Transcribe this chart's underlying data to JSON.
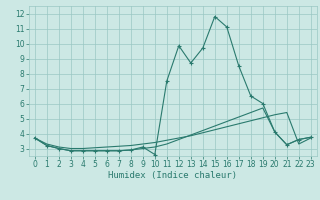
{
  "x_values": [
    0,
    1,
    2,
    3,
    4,
    5,
    6,
    7,
    8,
    9,
    10,
    11,
    12,
    13,
    14,
    15,
    16,
    17,
    18,
    19,
    20,
    21,
    22,
    23
  ],
  "line_main_y": [
    3.7,
    3.2,
    3.0,
    2.85,
    2.85,
    2.85,
    2.85,
    2.85,
    2.9,
    3.1,
    2.6,
    7.5,
    9.85,
    8.7,
    9.7,
    11.8,
    11.1,
    8.5,
    6.5,
    6.0,
    4.1,
    3.25,
    3.6,
    3.75
  ],
  "line_smooth1_y": [
    3.7,
    3.3,
    3.1,
    3.0,
    3.0,
    3.05,
    3.1,
    3.15,
    3.2,
    3.3,
    3.4,
    3.55,
    3.7,
    3.85,
    4.05,
    4.25,
    4.45,
    4.65,
    4.85,
    5.05,
    5.25,
    5.4,
    3.3,
    3.7
  ],
  "line_smooth2_y": [
    3.7,
    3.2,
    3.0,
    2.85,
    2.85,
    2.85,
    2.85,
    2.85,
    2.9,
    3.0,
    3.1,
    3.3,
    3.6,
    3.9,
    4.2,
    4.5,
    4.8,
    5.1,
    5.4,
    5.7,
    4.1,
    3.25,
    3.6,
    3.75
  ],
  "line_color": "#2a7a6e",
  "bg_color": "#cce8e4",
  "grid_color": "#9ac8c3",
  "xlabel": "Humidex (Indice chaleur)",
  "ylim": [
    2.5,
    12.5
  ],
  "xlim": [
    -0.5,
    23.5
  ],
  "yticks": [
    3,
    4,
    5,
    6,
    7,
    8,
    9,
    10,
    11,
    12
  ],
  "xticks": [
    0,
    1,
    2,
    3,
    4,
    5,
    6,
    7,
    8,
    9,
    10,
    11,
    12,
    13,
    14,
    15,
    16,
    17,
    18,
    19,
    20,
    21,
    22,
    23
  ],
  "xlabel_fontsize": 6.5,
  "tick_fontsize": 5.5
}
